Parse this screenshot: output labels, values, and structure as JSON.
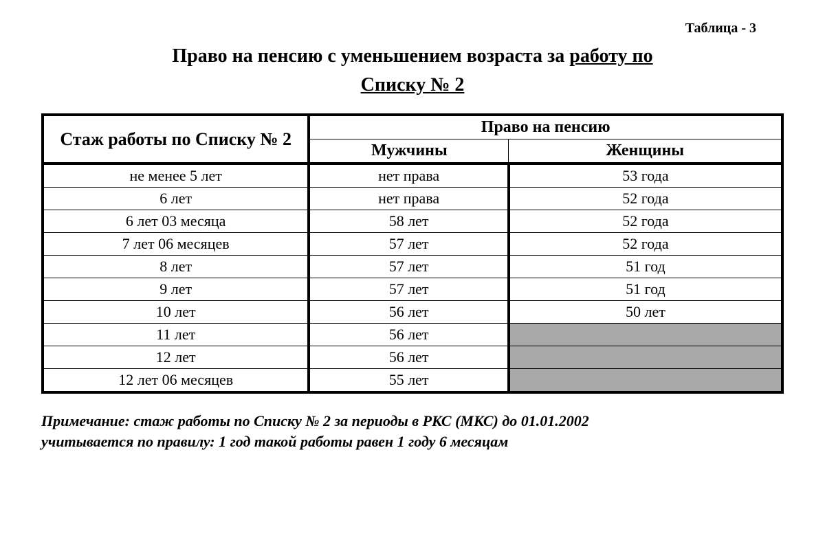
{
  "tableLabel": "Таблица - 3",
  "title": {
    "part1": "Право на пенсию с уменьшением возраста за ",
    "underlined1": "работу по",
    "underlined2": "Списку № 2"
  },
  "headers": {
    "stazh": "Стаж работы по Списку № 2",
    "pravo": "Право на пенсию",
    "men": "Мужчины",
    "women": "Женщины"
  },
  "rows": [
    {
      "stazh": "не менее 5 лет",
      "men": "нет права",
      "women": "53 года",
      "womenShaded": false
    },
    {
      "stazh": "6 лет",
      "men": "нет права",
      "women": "52 года",
      "womenShaded": false
    },
    {
      "stazh": "6 лет 03 месяца",
      "men": "58 лет",
      "women": "52 года",
      "womenShaded": false
    },
    {
      "stazh": "7 лет 06 месяцев",
      "men": "57 лет",
      "women": "52 года",
      "womenShaded": false
    },
    {
      "stazh": "8 лет",
      "men": "57 лет",
      "women": "51 год",
      "womenShaded": false
    },
    {
      "stazh": "9 лет",
      "men": "57 лет",
      "women": "51 год",
      "womenShaded": false
    },
    {
      "stazh": "10 лет",
      "men": "56 лет",
      "women": "50 лет",
      "womenShaded": false
    },
    {
      "stazh": "11 лет",
      "men": "56 лет",
      "women": "",
      "womenShaded": true
    },
    {
      "stazh": "12 лет",
      "men": "56 лет",
      "women": "",
      "womenShaded": true
    },
    {
      "stazh": "12 лет 06 месяцев",
      "men": "55 лет",
      "women": "",
      "womenShaded": true
    }
  ],
  "note": {
    "line1": "Примечание: стаж работы по Списку № 2 за периоды в РКС (МКС) до 01.01.2002",
    "line2": "учитывается по правилу:  1 год такой работы равен 1 году 6 месяцам"
  },
  "style": {
    "shadedColor": "#a9a9a9",
    "borderColor": "#000000",
    "backgroundColor": "#ffffff",
    "thickBorderPx": 4,
    "thinBorderPx": 1,
    "titleFontSize": 28,
    "cellFontSize": 22,
    "headerFontSize": 24,
    "stazhHeaderFontSize": 26,
    "noteFontSize": 22
  }
}
